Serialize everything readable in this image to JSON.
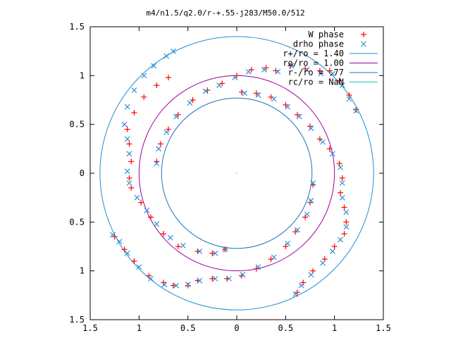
{
  "chart_data": {
    "type": "scatter",
    "title": "m4/n1.5/q2.0/r-+.55-j283/M50.0/512",
    "xlim": [
      -1.5,
      1.5
    ],
    "ylim": [
      -1.5,
      1.5
    ],
    "x_tick_values": [
      -1.5,
      -1,
      -0.5,
      0,
      0.5,
      1,
      1.5
    ],
    "x_tick_labels": [
      "1.5",
      "1",
      "0.5",
      "0",
      "0.5",
      "1",
      "1.5"
    ],
    "y_tick_values": [
      1.5,
      1,
      0.5,
      0,
      -0.5,
      -1,
      -1.5
    ],
    "y_tick_labels": [
      "1.5",
      "1",
      "0.5",
      "0",
      "0.5",
      "1",
      "1.5"
    ],
    "legend_position": "top-right",
    "grid": false,
    "series": [
      {
        "name": "W phase",
        "marker": "+",
        "color": "#ff0000",
        "points": [
          [
            -0.7,
            0.98
          ],
          [
            -0.82,
            0.9
          ],
          [
            -0.95,
            0.78
          ],
          [
            -1.05,
            0.62
          ],
          [
            -1.12,
            0.45
          ],
          [
            -1.1,
            0.3
          ],
          [
            -1.08,
            0.12
          ],
          [
            -1.1,
            -0.05
          ],
          [
            -1.08,
            -0.15
          ],
          [
            -0.98,
            -0.3
          ],
          [
            -0.88,
            -0.45
          ],
          [
            -0.75,
            -0.62
          ],
          [
            -0.6,
            -0.75
          ],
          [
            -0.4,
            -0.8
          ],
          [
            -0.25,
            -0.82
          ],
          [
            -0.12,
            -0.78
          ],
          [
            -0.82,
            0.12
          ],
          [
            -0.78,
            0.3
          ],
          [
            -0.7,
            0.45
          ],
          [
            -0.6,
            0.6
          ],
          [
            -0.45,
            0.75
          ],
          [
            -0.3,
            0.85
          ],
          [
            -0.15,
            0.92
          ],
          [
            0.0,
            1.0
          ],
          [
            0.15,
            1.06
          ],
          [
            0.3,
            1.08
          ],
          [
            0.4,
            1.05
          ],
          [
            0.55,
            1.1
          ],
          [
            0.7,
            1.07
          ],
          [
            0.85,
            1.05
          ],
          [
            0.95,
            1.05
          ],
          [
            1.05,
            0.95
          ],
          [
            1.15,
            0.8
          ],
          [
            1.22,
            0.65
          ],
          [
            0.05,
            0.83
          ],
          [
            0.2,
            0.82
          ],
          [
            0.35,
            0.78
          ],
          [
            0.5,
            0.7
          ],
          [
            0.62,
            0.6
          ],
          [
            0.75,
            0.48
          ],
          [
            0.85,
            0.35
          ],
          [
            0.95,
            0.25
          ],
          [
            1.05,
            0.1
          ],
          [
            1.08,
            -0.05
          ],
          [
            1.06,
            -0.2
          ],
          [
            1.1,
            -0.35
          ],
          [
            1.12,
            -0.5
          ],
          [
            1.1,
            -0.62
          ],
          [
            1.0,
            -0.75
          ],
          [
            0.9,
            -0.88
          ],
          [
            0.78,
            -1.0
          ],
          [
            0.68,
            -1.12
          ],
          [
            0.62,
            -1.22
          ],
          [
            0.78,
            -0.12
          ],
          [
            0.75,
            -0.3
          ],
          [
            0.7,
            -0.45
          ],
          [
            0.6,
            -0.6
          ],
          [
            0.5,
            -0.75
          ],
          [
            0.35,
            -0.88
          ],
          [
            0.2,
            -0.98
          ],
          [
            0.05,
            -1.05
          ],
          [
            -0.1,
            -1.08
          ],
          [
            -0.25,
            -1.08
          ],
          [
            -0.4,
            -1.1
          ],
          [
            -0.5,
            -1.15
          ],
          [
            -0.65,
            -1.15
          ],
          [
            -0.75,
            -1.12
          ],
          [
            -0.9,
            -1.05
          ],
          [
            -1.05,
            -0.9
          ],
          [
            -1.15,
            -0.78
          ],
          [
            -1.25,
            -0.65
          ]
        ]
      },
      {
        "name": "drho phase",
        "marker": "x",
        "color": "#2f8fd8",
        "points": [
          [
            -0.65,
            1.25
          ],
          [
            -0.72,
            1.2
          ],
          [
            -0.85,
            1.1
          ],
          [
            -0.95,
            1.0
          ],
          [
            -1.05,
            0.85
          ],
          [
            -1.12,
            0.68
          ],
          [
            -1.15,
            0.5
          ],
          [
            -1.12,
            0.35
          ],
          [
            -1.1,
            0.2
          ],
          [
            -1.12,
            0.02
          ],
          [
            -1.1,
            -0.1
          ],
          [
            -1.02,
            -0.25
          ],
          [
            -0.92,
            -0.38
          ],
          [
            -0.82,
            -0.52
          ],
          [
            -0.68,
            -0.66
          ],
          [
            -0.55,
            -0.74
          ],
          [
            -0.38,
            -0.8
          ],
          [
            -0.22,
            -0.82
          ],
          [
            -0.12,
            -0.78
          ],
          [
            -0.82,
            0.1
          ],
          [
            -0.8,
            0.25
          ],
          [
            -0.72,
            0.42
          ],
          [
            -0.62,
            0.58
          ],
          [
            -0.48,
            0.72
          ],
          [
            -0.32,
            0.84
          ],
          [
            -0.18,
            0.9
          ],
          [
            -0.02,
            0.98
          ],
          [
            0.12,
            1.04
          ],
          [
            0.28,
            1.06
          ],
          [
            0.42,
            1.04
          ],
          [
            0.56,
            1.1
          ],
          [
            0.72,
            1.06
          ],
          [
            0.86,
            1.02
          ],
          [
            0.98,
            1.02
          ],
          [
            1.08,
            0.9
          ],
          [
            1.15,
            0.76
          ],
          [
            1.22,
            0.64
          ],
          [
            0.08,
            0.82
          ],
          [
            0.22,
            0.8
          ],
          [
            0.38,
            0.76
          ],
          [
            0.52,
            0.68
          ],
          [
            0.64,
            0.58
          ],
          [
            0.76,
            0.46
          ],
          [
            0.88,
            0.32
          ],
          [
            0.98,
            0.2
          ],
          [
            1.06,
            0.06
          ],
          [
            1.08,
            -0.1
          ],
          [
            1.08,
            -0.25
          ],
          [
            1.12,
            -0.4
          ],
          [
            1.12,
            -0.55
          ],
          [
            1.06,
            -0.68
          ],
          [
            0.98,
            -0.8
          ],
          [
            0.88,
            -0.92
          ],
          [
            0.76,
            -1.04
          ],
          [
            0.66,
            -1.15
          ],
          [
            0.6,
            -1.24
          ],
          [
            0.78,
            -0.1
          ],
          [
            0.76,
            -0.28
          ],
          [
            0.72,
            -0.42
          ],
          [
            0.62,
            -0.58
          ],
          [
            0.52,
            -0.72
          ],
          [
            0.38,
            -0.86
          ],
          [
            0.22,
            -0.96
          ],
          [
            0.06,
            -1.04
          ],
          [
            -0.08,
            -1.08
          ],
          [
            -0.22,
            -1.08
          ],
          [
            -0.38,
            -1.1
          ],
          [
            -0.5,
            -1.14
          ],
          [
            -0.62,
            -1.15
          ],
          [
            -0.74,
            -1.14
          ],
          [
            -0.88,
            -1.08
          ],
          [
            -1.0,
            -0.96
          ],
          [
            -1.12,
            -0.82
          ],
          [
            -1.2,
            -0.7
          ],
          [
            -1.27,
            -0.63
          ]
        ]
      },
      {
        "name": "r+/ro = 1.40",
        "type": "circle",
        "radius": 1.4,
        "color": "#1f8fd0"
      },
      {
        "name": "ro/ro = 1.00",
        "type": "circle",
        "radius": 1.0,
        "color": "#9b009b"
      },
      {
        "name": "r-/ro = .77",
        "type": "circle",
        "radius": 0.77,
        "color": "#1f70c0"
      },
      {
        "name": "rc/ro = NaN",
        "type": "circle",
        "radius": null,
        "color": "#19bfbf"
      }
    ]
  }
}
